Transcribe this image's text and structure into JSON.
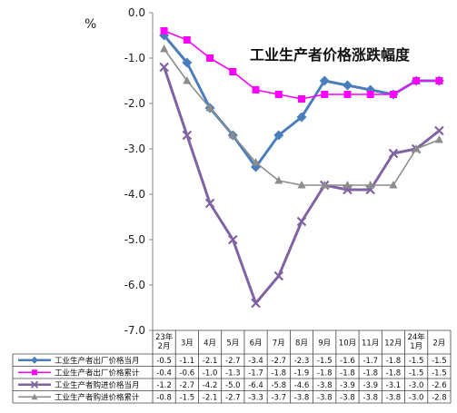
{
  "chart_data": {
    "type": "line",
    "title": "工业生产者价格涨跌幅度",
    "unit": "%",
    "ylim": [
      -7.0,
      0.0
    ],
    "yticks": [
      "0.0",
      "-1.0",
      "-2.0",
      "-3.0",
      "-4.0",
      "-5.0",
      "-6.0",
      "-7.0"
    ],
    "categories": [
      [
        "23年",
        "2月"
      ],
      [
        "3月"
      ],
      [
        "4月"
      ],
      [
        "5月"
      ],
      [
        "6月"
      ],
      [
        "7月"
      ],
      [
        "8月"
      ],
      [
        "9月"
      ],
      [
        "10月"
      ],
      [
        "11月"
      ],
      [
        "12月"
      ],
      [
        "24年",
        "1月"
      ],
      [
        "2月"
      ]
    ],
    "series": [
      {
        "name": "工业生产者出厂价格当月",
        "color": "#4a7ebb",
        "marker": "diamond",
        "values": [
          -0.5,
          -1.1,
          -2.1,
          -2.7,
          -3.4,
          -2.7,
          -2.3,
          -1.5,
          -1.6,
          -1.7,
          -1.8,
          -1.5,
          -1.5
        ]
      },
      {
        "name": "工业生产者出厂价格累计",
        "color": "#ff00ff",
        "marker": "square",
        "values": [
          -0.4,
          -0.6,
          -1.0,
          -1.3,
          -1.7,
          -1.8,
          -1.9,
          -1.8,
          -1.8,
          -1.8,
          -1.8,
          -1.5,
          -1.5
        ]
      },
      {
        "name": "工业生产者购进价格当月",
        "color": "#8064a2",
        "marker": "x",
        "values": [
          -1.2,
          -2.7,
          -4.2,
          -5.0,
          -6.4,
          -5.8,
          -4.6,
          -3.8,
          -3.9,
          -3.9,
          -3.1,
          -3.0,
          -2.6
        ]
      },
      {
        "name": "工业生产者购进价格累计",
        "color": "#8c8c8c",
        "marker": "triangle",
        "values": [
          -0.8,
          -1.5,
          -2.1,
          -2.7,
          -3.3,
          -3.7,
          -3.8,
          -3.8,
          -3.8,
          -3.8,
          -3.8,
          -3.0,
          -2.8
        ]
      }
    ],
    "table_values": [
      [
        "-0.5",
        "-1.1",
        "-2.1",
        "-2.7",
        "-3.4",
        "-2.7",
        "-2.3",
        "-1.5",
        "-1.6",
        "-1.7",
        "-1.8",
        "-1.5",
        "-1.5"
      ],
      [
        "-0.4",
        "-0.6",
        "-1.0",
        "-1.3",
        "-1.7",
        "-1.8",
        "-1.9",
        "-1.8",
        "-1.8",
        "-1.8",
        "-1.8",
        "-1.5",
        "-1.5"
      ],
      [
        "-1.2",
        "-2.7",
        "-4.2",
        "-5.0",
        "-6.4",
        "-5.8",
        "-4.6",
        "-3.8",
        "-3.9",
        "-3.9",
        "-3.1",
        "-3.0",
        "-2.6"
      ],
      [
        "-0.8",
        "-1.5",
        "-2.1",
        "-2.7",
        "-3.3",
        "-3.7",
        "-3.8",
        "-3.8",
        "-3.8",
        "-3.8",
        "-3.8",
        "-3.0",
        "-2.8"
      ]
    ],
    "grid": false,
    "legend": "bottom-table"
  }
}
